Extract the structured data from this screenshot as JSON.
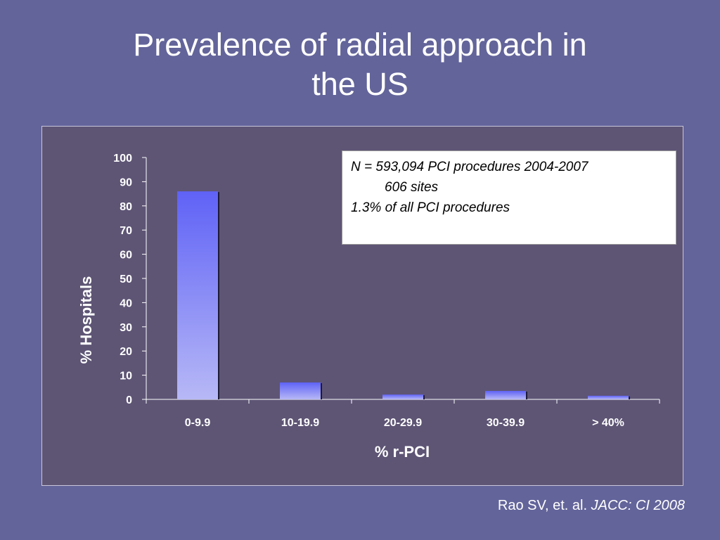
{
  "slide": {
    "title_line1": "Prevalence of radial approach in",
    "title_line2": "the US",
    "background_color": "#63649a"
  },
  "note": {
    "line1": "N = 593,094 PCI procedures 2004-2007",
    "line2": "606 sites",
    "line3": "1.3% of all PCI procedures"
  },
  "citation": {
    "authors": "Rao SV, et. al.",
    "journal": "JACC: CI 2008"
  },
  "chart_data": {
    "type": "bar",
    "categories": [
      "0-9.9",
      "10-19.9",
      "20-29.9",
      "30-39.9",
      "> 40%"
    ],
    "values": [
      86,
      7,
      2,
      3.5,
      1.5
    ],
    "xlabel": "% r-PCI",
    "ylabel": "% Hospitals",
    "ylim": [
      0,
      100
    ],
    "yticks": [
      0,
      10,
      20,
      30,
      40,
      50,
      60,
      70,
      80,
      90,
      100
    ],
    "grid": false,
    "legend": "none",
    "colors": {
      "bar_top": "#5f62f6",
      "bar_bottom": "#b7b8f6",
      "plot_background": "#5e5575",
      "axis": "#ffffff"
    }
  }
}
